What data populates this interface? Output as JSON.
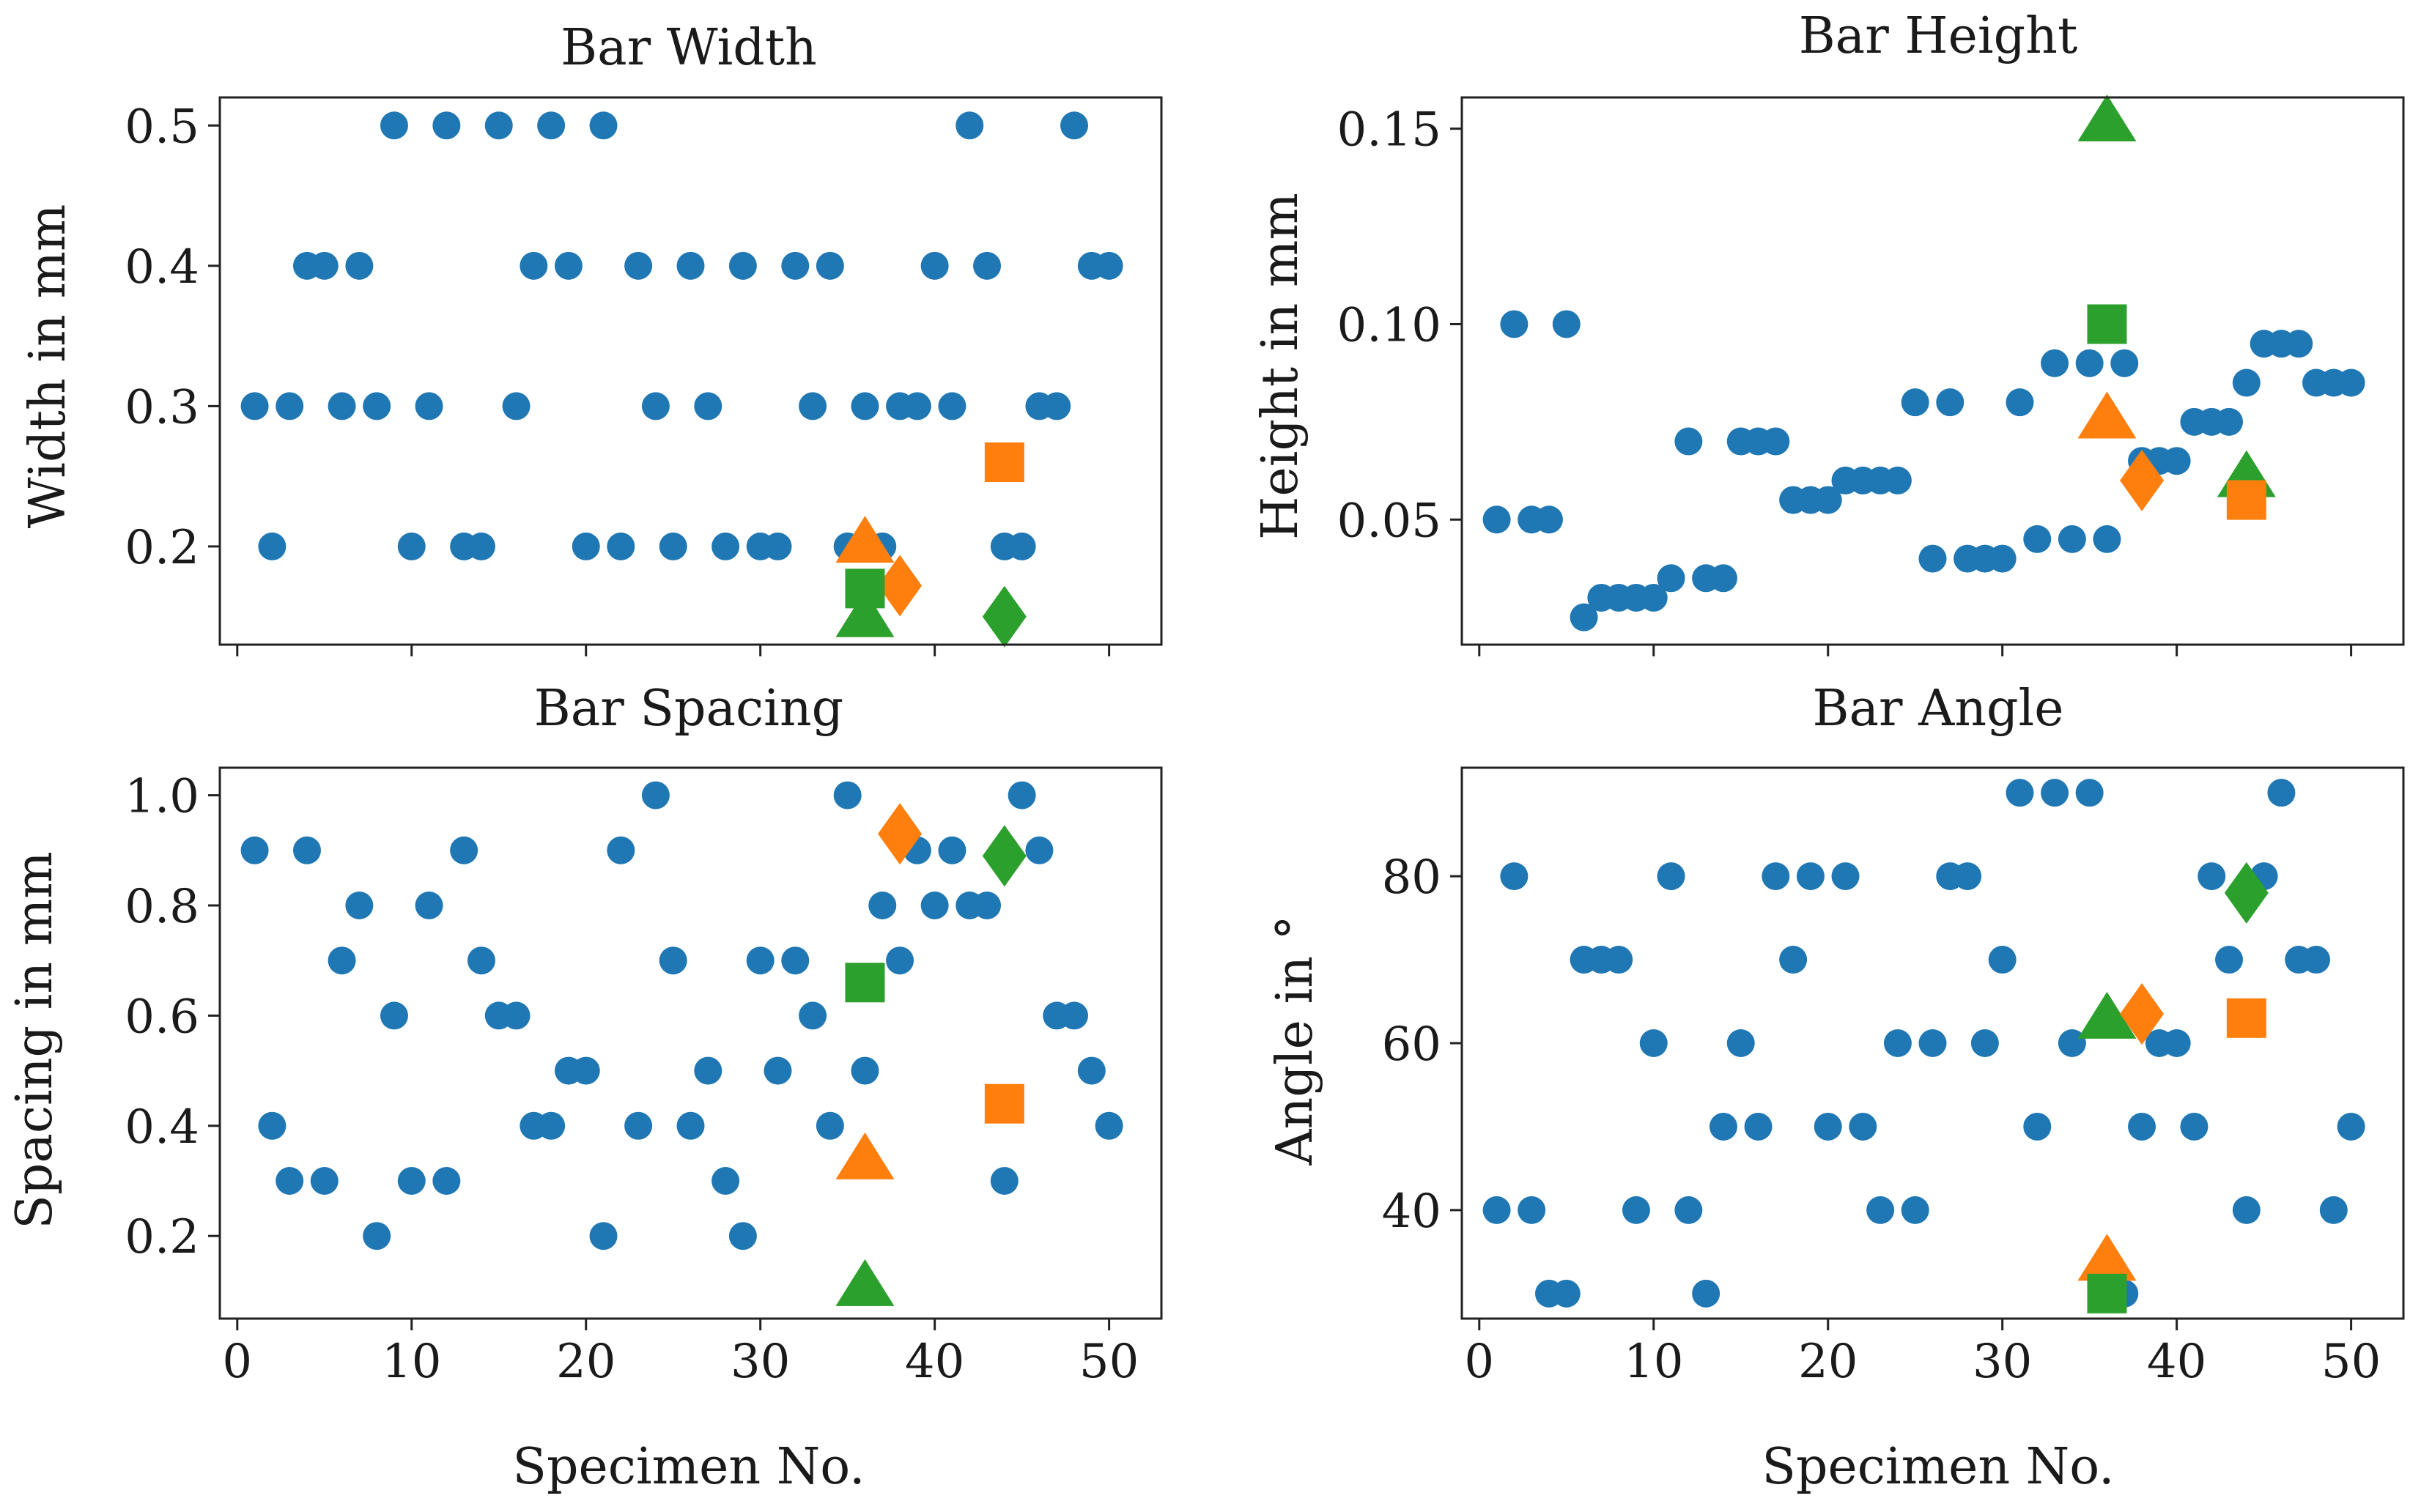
{
  "colors": {
    "blue": "#1f77b4",
    "orange": "#ff7f0e",
    "green": "#2ca02c",
    "axis": "#222222"
  },
  "shared_xlabel": "Specimen No.",
  "chart_data": [
    {
      "type": "scatter",
      "title": "Bar Width",
      "xlabel": "",
      "ylabel": "Width in mm",
      "xlim": [
        -1,
        53
      ],
      "ylim": [
        0.13,
        0.52
      ],
      "yticks": [
        "0.2",
        "0.3",
        "0.4",
        "0.5"
      ],
      "xticks": [
        "",
        "",
        "",
        "",
        "",
        ""
      ],
      "series": [
        {
          "marker": "circle",
          "color": "#1f77b4",
          "points": [
            [
              1,
              0.3
            ],
            [
              2,
              0.2
            ],
            [
              3,
              0.3
            ],
            [
              4,
              0.4
            ],
            [
              5,
              0.4
            ],
            [
              6,
              0.3
            ],
            [
              7,
              0.4
            ],
            [
              8,
              0.3
            ],
            [
              9,
              0.5
            ],
            [
              10,
              0.2
            ],
            [
              11,
              0.3
            ],
            [
              12,
              0.5
            ],
            [
              13,
              0.2
            ],
            [
              14,
              0.2
            ],
            [
              15,
              0.5
            ],
            [
              16,
              0.3
            ],
            [
              17,
              0.4
            ],
            [
              18,
              0.5
            ],
            [
              19,
              0.4
            ],
            [
              20,
              0.2
            ],
            [
              21,
              0.5
            ],
            [
              22,
              0.2
            ],
            [
              23,
              0.4
            ],
            [
              24,
              0.3
            ],
            [
              25,
              0.2
            ],
            [
              26,
              0.4
            ],
            [
              27,
              0.3
            ],
            [
              28,
              0.2
            ],
            [
              29,
              0.4
            ],
            [
              30,
              0.2
            ],
            [
              31,
              0.2
            ],
            [
              32,
              0.4
            ],
            [
              33,
              0.3
            ],
            [
              34,
              0.4
            ],
            [
              35,
              0.2
            ],
            [
              36,
              0.3
            ],
            [
              37,
              0.2
            ],
            [
              38,
              0.3
            ],
            [
              39,
              0.3
            ],
            [
              40,
              0.4
            ],
            [
              41,
              0.3
            ],
            [
              42,
              0.5
            ],
            [
              43,
              0.4
            ],
            [
              44,
              0.2
            ],
            [
              45,
              0.2
            ],
            [
              46,
              0.3
            ],
            [
              47,
              0.3
            ],
            [
              48,
              0.5
            ],
            [
              49,
              0.4
            ],
            [
              50,
              0.4
            ]
          ]
        },
        {
          "marker": "triangle",
          "color": "#ff7f0e",
          "points": [
            [
              36,
              0.203
            ]
          ]
        },
        {
          "marker": "diamond",
          "color": "#ff7f0e",
          "points": [
            [
              38,
              0.172
            ]
          ]
        },
        {
          "marker": "square",
          "color": "#ff7f0e",
          "points": [
            [
              44,
              0.26
            ]
          ]
        },
        {
          "marker": "square",
          "color": "#2ca02c",
          "points": [
            [
              36,
              0.17
            ]
          ]
        },
        {
          "marker": "triangle",
          "color": "#2ca02c",
          "points": [
            [
              36,
              0.15
            ]
          ]
        },
        {
          "marker": "diamond",
          "color": "#2ca02c",
          "points": [
            [
              44,
              0.15
            ]
          ]
        }
      ]
    },
    {
      "type": "scatter",
      "title": "Bar Height",
      "xlabel": "",
      "ylabel": "Height in mm",
      "xlim": [
        -1,
        53
      ],
      "ylim": [
        0.018,
        0.158
      ],
      "yticks": [
        "0.05",
        "0.10",
        "0.15"
      ],
      "xticks": [
        "",
        "",
        "",
        "",
        "",
        ""
      ],
      "series": [
        {
          "marker": "circle",
          "color": "#1f77b4",
          "points": [
            [
              1,
              0.05
            ],
            [
              2,
              0.1
            ],
            [
              3,
              0.05
            ],
            [
              4,
              0.05
            ],
            [
              5,
              0.1
            ],
            [
              6,
              0.025
            ],
            [
              7,
              0.03
            ],
            [
              8,
              0.03
            ],
            [
              9,
              0.03
            ],
            [
              10,
              0.03
            ],
            [
              11,
              0.035
            ],
            [
              12,
              0.07
            ],
            [
              13,
              0.035
            ],
            [
              14,
              0.035
            ],
            [
              15,
              0.07
            ],
            [
              16,
              0.07
            ],
            [
              17,
              0.07
            ],
            [
              18,
              0.055
            ],
            [
              19,
              0.055
            ],
            [
              20,
              0.055
            ],
            [
              21,
              0.06
            ],
            [
              22,
              0.06
            ],
            [
              23,
              0.06
            ],
            [
              24,
              0.06
            ],
            [
              25,
              0.08
            ],
            [
              26,
              0.04
            ],
            [
              27,
              0.08
            ],
            [
              28,
              0.04
            ],
            [
              29,
              0.04
            ],
            [
              30,
              0.04
            ],
            [
              31,
              0.08
            ],
            [
              32,
              0.045
            ],
            [
              33,
              0.09
            ],
            [
              34,
              0.045
            ],
            [
              35,
              0.09
            ],
            [
              36,
              0.045
            ],
            [
              37,
              0.09
            ],
            [
              38,
              0.065
            ],
            [
              39,
              0.065
            ],
            [
              40,
              0.065
            ],
            [
              41,
              0.075
            ],
            [
              42,
              0.075
            ],
            [
              43,
              0.075
            ],
            [
              44,
              0.085
            ],
            [
              45,
              0.095
            ],
            [
              46,
              0.095
            ],
            [
              47,
              0.095
            ],
            [
              48,
              0.085
            ],
            [
              49,
              0.085
            ],
            [
              50,
              0.085
            ]
          ]
        },
        {
          "marker": "triangle",
          "color": "#2ca02c",
          "points": [
            [
              36,
              0.152
            ]
          ]
        },
        {
          "marker": "square",
          "color": "#2ca02c",
          "points": [
            [
              36,
              0.1
            ]
          ]
        },
        {
          "marker": "triangle",
          "color": "#ff7f0e",
          "points": [
            [
              36,
              0.076
            ]
          ]
        },
        {
          "marker": "diamond",
          "color": "#ff7f0e",
          "points": [
            [
              38,
              0.06
            ]
          ]
        },
        {
          "marker": "triangle",
          "color": "#2ca02c",
          "points": [
            [
              44,
              0.061
            ]
          ]
        },
        {
          "marker": "square",
          "color": "#ff7f0e",
          "points": [
            [
              44,
              0.055
            ]
          ]
        }
      ]
    },
    {
      "type": "scatter",
      "title": "Bar Spacing",
      "xlabel": "Specimen No.",
      "ylabel": "Spacing in mm",
      "xlim": [
        -1,
        53
      ],
      "ylim": [
        0.05,
        1.05
      ],
      "yticks": [
        "0.2",
        "0.4",
        "0.6",
        "0.8",
        "1.0"
      ],
      "xticks": [
        "0",
        "10",
        "20",
        "30",
        "40",
        "50"
      ],
      "series": [
        {
          "marker": "circle",
          "color": "#1f77b4",
          "points": [
            [
              1,
              0.9
            ],
            [
              2,
              0.4
            ],
            [
              3,
              0.3
            ],
            [
              4,
              0.9
            ],
            [
              5,
              0.3
            ],
            [
              6,
              0.7
            ],
            [
              7,
              0.8
            ],
            [
              8,
              0.2
            ],
            [
              9,
              0.6
            ],
            [
              10,
              0.3
            ],
            [
              11,
              0.8
            ],
            [
              12,
              0.3
            ],
            [
              13,
              0.9
            ],
            [
              14,
              0.7
            ],
            [
              15,
              0.6
            ],
            [
              16,
              0.6
            ],
            [
              17,
              0.4
            ],
            [
              18,
              0.4
            ],
            [
              19,
              0.5
            ],
            [
              20,
              0.5
            ],
            [
              21,
              0.2
            ],
            [
              22,
              0.9
            ],
            [
              23,
              0.4
            ],
            [
              24,
              1.0
            ],
            [
              25,
              0.7
            ],
            [
              26,
              0.4
            ],
            [
              27,
              0.5
            ],
            [
              28,
              0.3
            ],
            [
              29,
              0.2
            ],
            [
              30,
              0.7
            ],
            [
              31,
              0.5
            ],
            [
              32,
              0.7
            ],
            [
              33,
              0.6
            ],
            [
              34,
              0.4
            ],
            [
              35,
              1.0
            ],
            [
              36,
              0.5
            ],
            [
              37,
              0.8
            ],
            [
              38,
              0.7
            ],
            [
              39,
              0.9
            ],
            [
              40,
              0.8
            ],
            [
              41,
              0.9
            ],
            [
              42,
              0.8
            ],
            [
              43,
              0.8
            ],
            [
              44,
              0.3
            ],
            [
              45,
              1.0
            ],
            [
              46,
              0.9
            ],
            [
              47,
              0.6
            ],
            [
              48,
              0.6
            ],
            [
              49,
              0.5
            ],
            [
              50,
              0.4
            ]
          ]
        },
        {
          "marker": "diamond",
          "color": "#ff7f0e",
          "points": [
            [
              38,
              0.93
            ]
          ]
        },
        {
          "marker": "diamond",
          "color": "#2ca02c",
          "points": [
            [
              44,
              0.89
            ]
          ]
        },
        {
          "marker": "square",
          "color": "#2ca02c",
          "points": [
            [
              36,
              0.66
            ]
          ]
        },
        {
          "marker": "square",
          "color": "#ff7f0e",
          "points": [
            [
              44,
              0.44
            ]
          ]
        },
        {
          "marker": "triangle",
          "color": "#ff7f0e",
          "points": [
            [
              36,
              0.34
            ]
          ]
        },
        {
          "marker": "triangle",
          "color": "#2ca02c",
          "points": [
            [
              36,
              0.11
            ]
          ]
        }
      ]
    },
    {
      "type": "scatter",
      "title": "Bar Angle",
      "xlabel": "Specimen No.",
      "ylabel": "Angle in °",
      "xlim": [
        -1,
        53
      ],
      "ylim": [
        27,
        93
      ],
      "yticks": [
        "40",
        "60",
        "80"
      ],
      "xticks": [
        "0",
        "10",
        "20",
        "30",
        "40",
        "50"
      ],
      "series": [
        {
          "marker": "circle",
          "color": "#1f77b4",
          "points": [
            [
              1,
              40
            ],
            [
              2,
              80
            ],
            [
              3,
              40
            ],
            [
              4,
              30
            ],
            [
              5,
              30
            ],
            [
              6,
              70
            ],
            [
              7,
              70
            ],
            [
              8,
              70
            ],
            [
              9,
              40
            ],
            [
              10,
              60
            ],
            [
              11,
              80
            ],
            [
              12,
              40
            ],
            [
              13,
              30
            ],
            [
              14,
              50
            ],
            [
              15,
              60
            ],
            [
              16,
              50
            ],
            [
              17,
              80
            ],
            [
              18,
              70
            ],
            [
              19,
              80
            ],
            [
              20,
              50
            ],
            [
              21,
              80
            ],
            [
              22,
              50
            ],
            [
              23,
              40
            ],
            [
              24,
              60
            ],
            [
              25,
              40
            ],
            [
              26,
              60
            ],
            [
              27,
              80
            ],
            [
              28,
              80
            ],
            [
              29,
              60
            ],
            [
              30,
              70
            ],
            [
              31,
              90
            ],
            [
              32,
              50
            ],
            [
              33,
              90
            ],
            [
              34,
              60
            ],
            [
              35,
              90
            ],
            [
              36,
              30
            ],
            [
              37,
              30
            ],
            [
              38,
              50
            ],
            [
              39,
              60
            ],
            [
              40,
              60
            ],
            [
              41,
              50
            ],
            [
              42,
              80
            ],
            [
              43,
              70
            ],
            [
              44,
              40
            ],
            [
              45,
              80
            ],
            [
              46,
              90
            ],
            [
              47,
              70
            ],
            [
              48,
              70
            ],
            [
              49,
              40
            ],
            [
              50,
              50
            ]
          ]
        },
        {
          "marker": "diamond",
          "color": "#2ca02c",
          "points": [
            [
              44,
              78
            ]
          ]
        },
        {
          "marker": "triangle",
          "color": "#2ca02c",
          "points": [
            [
              36,
              63
            ]
          ]
        },
        {
          "marker": "diamond",
          "color": "#ff7f0e",
          "points": [
            [
              38,
              63.5
            ]
          ]
        },
        {
          "marker": "square",
          "color": "#ff7f0e",
          "points": [
            [
              44,
              63
            ]
          ]
        },
        {
          "marker": "triangle",
          "color": "#ff7f0e",
          "points": [
            [
              36,
              34
            ]
          ]
        },
        {
          "marker": "square",
          "color": "#2ca02c",
          "points": [
            [
              36,
              30
            ]
          ]
        }
      ]
    }
  ]
}
